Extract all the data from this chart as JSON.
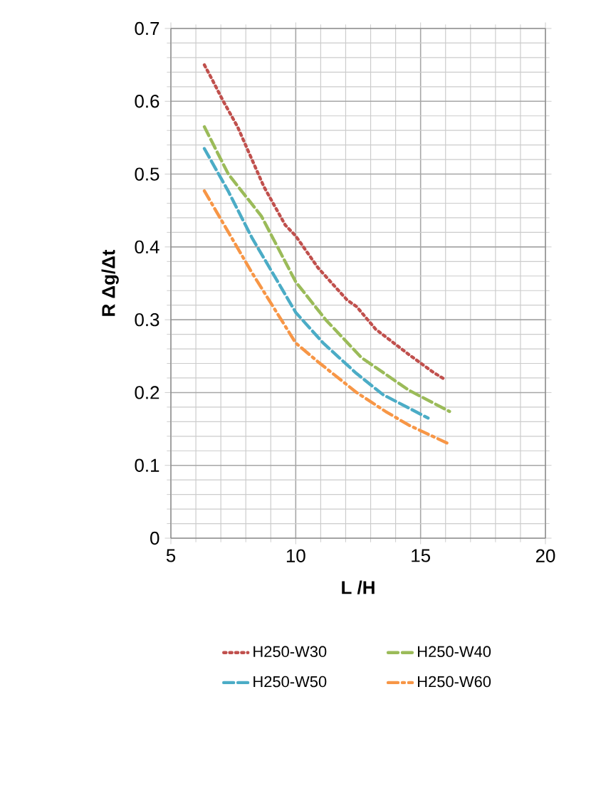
{
  "chart_data": {
    "type": "line",
    "xlabel": "L /H",
    "ylabel": "R Δg/Δt",
    "xlim": [
      5,
      20
    ],
    "ylim": [
      0,
      0.7
    ],
    "xticks": [
      5,
      10,
      15,
      20
    ],
    "yticks": [
      0,
      0.1,
      0.2,
      0.3,
      0.4,
      0.5,
      0.6,
      0.7
    ],
    "grid": true,
    "legend": "bottom",
    "marker": "none",
    "series": [
      {
        "name": "H250-W30",
        "color": "#c0504d",
        "line_style": "dotted",
        "x": [
          6.34,
          6.62,
          7.1,
          7.67,
          8.72,
          9.58,
          10,
          10.9,
          12.06,
          12.44,
          13.2,
          14.54,
          15.5,
          15.97
        ],
        "values": [
          0.65,
          0.632,
          0.6,
          0.565,
          0.483,
          0.43,
          0.415,
          0.371,
          0.327,
          0.318,
          0.287,
          0.252,
          0.228,
          0.218
        ]
      },
      {
        "name": "H250-W40",
        "color": "#9bbb59",
        "line_style": "dashed",
        "x": [
          6.34,
          7.3,
          8.63,
          10,
          11.2,
          12.63,
          14.54,
          16.16
        ],
        "values": [
          0.565,
          0.5,
          0.442,
          0.352,
          0.3,
          0.248,
          0.203,
          0.174
        ]
      },
      {
        "name": "H250-W50",
        "color": "#4bacc6",
        "line_style": "dashed",
        "x": [
          6.34,
          7.29,
          8.24,
          10,
          11.1,
          12.44,
          13.5,
          15.3
        ],
        "values": [
          0.535,
          0.477,
          0.413,
          0.31,
          0.268,
          0.226,
          0.197,
          0.165
        ]
      },
      {
        "name": "H250-W60",
        "color": "#f79646",
        "line_style": "dashdot",
        "x": [
          6.34,
          7.29,
          8.24,
          10,
          10.9,
          12.44,
          13.6,
          14.54,
          16.16
        ],
        "values": [
          0.477,
          0.421,
          0.365,
          0.268,
          0.242,
          0.2,
          0.174,
          0.155,
          0.129
        ]
      }
    ]
  }
}
